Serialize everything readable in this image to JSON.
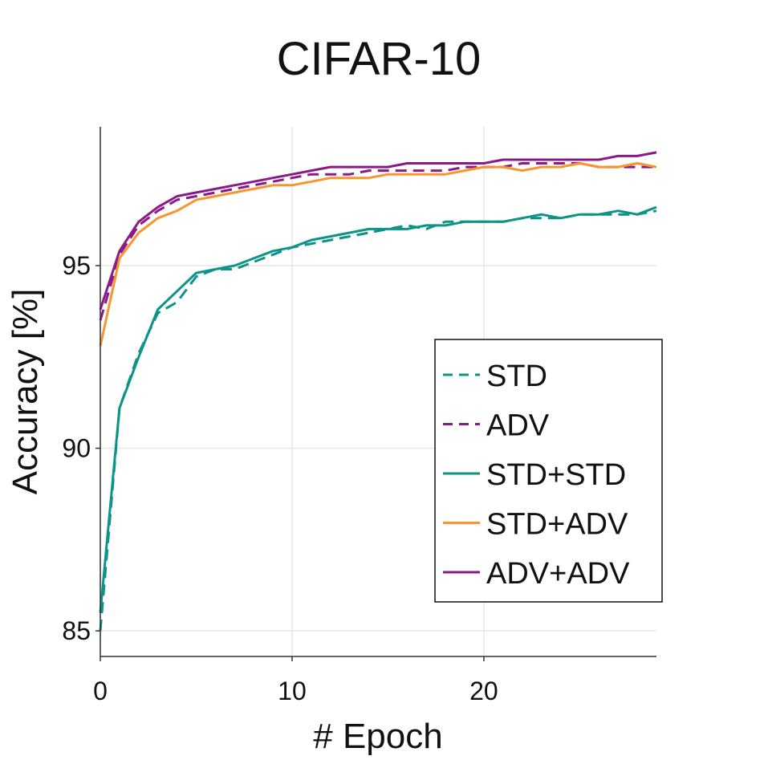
{
  "chart_data": {
    "type": "line",
    "title": "CIFAR-10",
    "xlabel": "# Epoch",
    "ylabel": "Accuracy [%]",
    "xlim": [
      0,
      29
    ],
    "ylim": [
      84.3,
      98.8
    ],
    "xticks": [
      0,
      10,
      20
    ],
    "yticks": [
      85,
      90,
      95
    ],
    "grid": true,
    "legend_position": "lower-right",
    "x": [
      0,
      1,
      2,
      3,
      4,
      5,
      6,
      7,
      8,
      9,
      10,
      11,
      12,
      13,
      14,
      15,
      16,
      17,
      18,
      19,
      20,
      21,
      22,
      23,
      24,
      25,
      26,
      27,
      28,
      29
    ],
    "series": [
      {
        "name": "STD",
        "style": "dashed",
        "color": "#0d9488",
        "values": [
          85.0,
          91.1,
          92.6,
          93.7,
          94.0,
          94.7,
          94.9,
          94.9,
          95.1,
          95.3,
          95.5,
          95.6,
          95.7,
          95.8,
          95.9,
          96.0,
          96.1,
          96.0,
          96.2,
          96.2,
          96.2,
          96.2,
          96.3,
          96.3,
          96.3,
          96.4,
          96.4,
          96.4,
          96.4,
          96.5
        ]
      },
      {
        "name": "ADV",
        "style": "dashed",
        "color": "#8b1a89",
        "values": [
          93.5,
          95.3,
          96.1,
          96.5,
          96.8,
          96.9,
          97.0,
          97.1,
          97.2,
          97.3,
          97.4,
          97.5,
          97.5,
          97.5,
          97.6,
          97.6,
          97.6,
          97.6,
          97.6,
          97.7,
          97.7,
          97.7,
          97.8,
          97.8,
          97.8,
          97.8,
          97.7,
          97.7,
          97.7,
          97.7
        ]
      },
      {
        "name": "STD+STD",
        "style": "solid",
        "color": "#0d9488",
        "values": [
          85.5,
          91.1,
          92.5,
          93.8,
          94.3,
          94.8,
          94.9,
          95.0,
          95.2,
          95.4,
          95.5,
          95.7,
          95.8,
          95.9,
          96.0,
          96.0,
          96.0,
          96.1,
          96.1,
          96.2,
          96.2,
          96.2,
          96.3,
          96.4,
          96.3,
          96.4,
          96.4,
          96.5,
          96.4,
          96.6
        ]
      },
      {
        "name": "STD+ADV",
        "style": "solid",
        "color": "#f7962e",
        "values": [
          92.8,
          95.2,
          95.9,
          96.3,
          96.5,
          96.8,
          96.9,
          97.0,
          97.1,
          97.2,
          97.2,
          97.3,
          97.4,
          97.4,
          97.4,
          97.5,
          97.5,
          97.5,
          97.5,
          97.6,
          97.7,
          97.7,
          97.6,
          97.7,
          97.7,
          97.8,
          97.7,
          97.7,
          97.8,
          97.7
        ]
      },
      {
        "name": "ADV+ADV",
        "style": "solid",
        "color": "#8b1a89",
        "values": [
          93.8,
          95.4,
          96.2,
          96.6,
          96.9,
          97.0,
          97.1,
          97.2,
          97.3,
          97.4,
          97.5,
          97.6,
          97.7,
          97.7,
          97.7,
          97.7,
          97.8,
          97.8,
          97.8,
          97.8,
          97.8,
          97.9,
          97.9,
          97.9,
          97.9,
          97.9,
          97.9,
          98.0,
          98.0,
          98.1
        ]
      }
    ]
  }
}
